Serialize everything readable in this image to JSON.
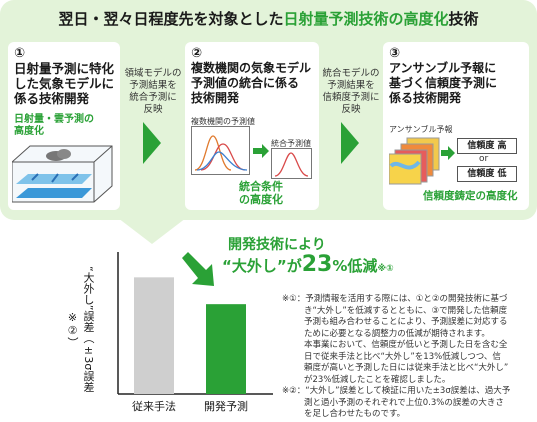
{
  "title": {
    "part1": "翌日・翌々日程度先を対象とした",
    "part2": "日射量予測技術の高度化",
    "part3": "技術"
  },
  "step1": {
    "num": "①",
    "title_lines": [
      "日射量予測に特化",
      "した気象モデルに",
      "係る技術開発"
    ],
    "sub_lines": [
      "日射量・雲予測の",
      "高度化"
    ]
  },
  "arrow1": {
    "lines": [
      "領域モデルの",
      "予測結果を",
      "統合予測に",
      "反映"
    ]
  },
  "step2": {
    "num": "②",
    "title_lines": [
      "複数機関の気象モデル",
      "予測値の統合に係る",
      "技術開発"
    ],
    "chart_label": "複数機関の予測値",
    "integrated_label": "統合予測値",
    "sub_lines": [
      "統合条件",
      "の高度化"
    ]
  },
  "arrow2": {
    "lines": [
      "統合モデルの",
      "予測結果を",
      "信頼度予測に",
      "反映"
    ]
  },
  "step3": {
    "num": "③",
    "title_lines": [
      "アンサンブル予報に",
      "基づく信頼度予測に",
      "係る技術開発"
    ],
    "ensemble_label": "アンサンブル予報",
    "high": "信頼度 高",
    "or": "or",
    "low": "信頼度 低",
    "sub": "信頼度鋳定の高度化"
  },
  "result": {
    "line1": "開発技術により",
    "line2_a": "“大外し”が",
    "line2_b": "23",
    "line2_c": "%低減",
    "line2_note": "※①"
  },
  "chart_data": {
    "type": "bar",
    "categories": [
      "従来手法",
      "開発予測"
    ],
    "values": [
      100,
      77
    ],
    "ylabel": "“大外し”誤差（±3σ誤差※②）",
    "ylim": [
      0,
      120
    ],
    "colors": [
      "#cfcfcf",
      "#2aa136"
    ]
  },
  "notes": {
    "n1": [
      "※①：予測情報を活用する際には、①と②の開発技術に基づ",
      "き“大外し”を低減するとともに、③で開発した信頼度",
      "予測も組み合わせることにより、予測誤差に対応する",
      "ために必要となる調整力の低減が期待されます。",
      "本事業において、信頼度が低いと予測した日を含む全",
      "日で従来手法と比べ“大外し”を13%低減しつつ、信",
      "頼度が高いと予測した日には従来手法と比べ“大外し”",
      "が23%低減したことを確認しました。"
    ],
    "n2": [
      "※②：“大外し”誤差として検証に用いた±3σ誤差は、過大予",
      "測と過小予測のそれぞれで上位0.3%の誤差の大きさ",
      "を足し合わせたものです。"
    ]
  },
  "colors": {
    "accent": "#2aa136",
    "panel": "#e3f3d9"
  }
}
